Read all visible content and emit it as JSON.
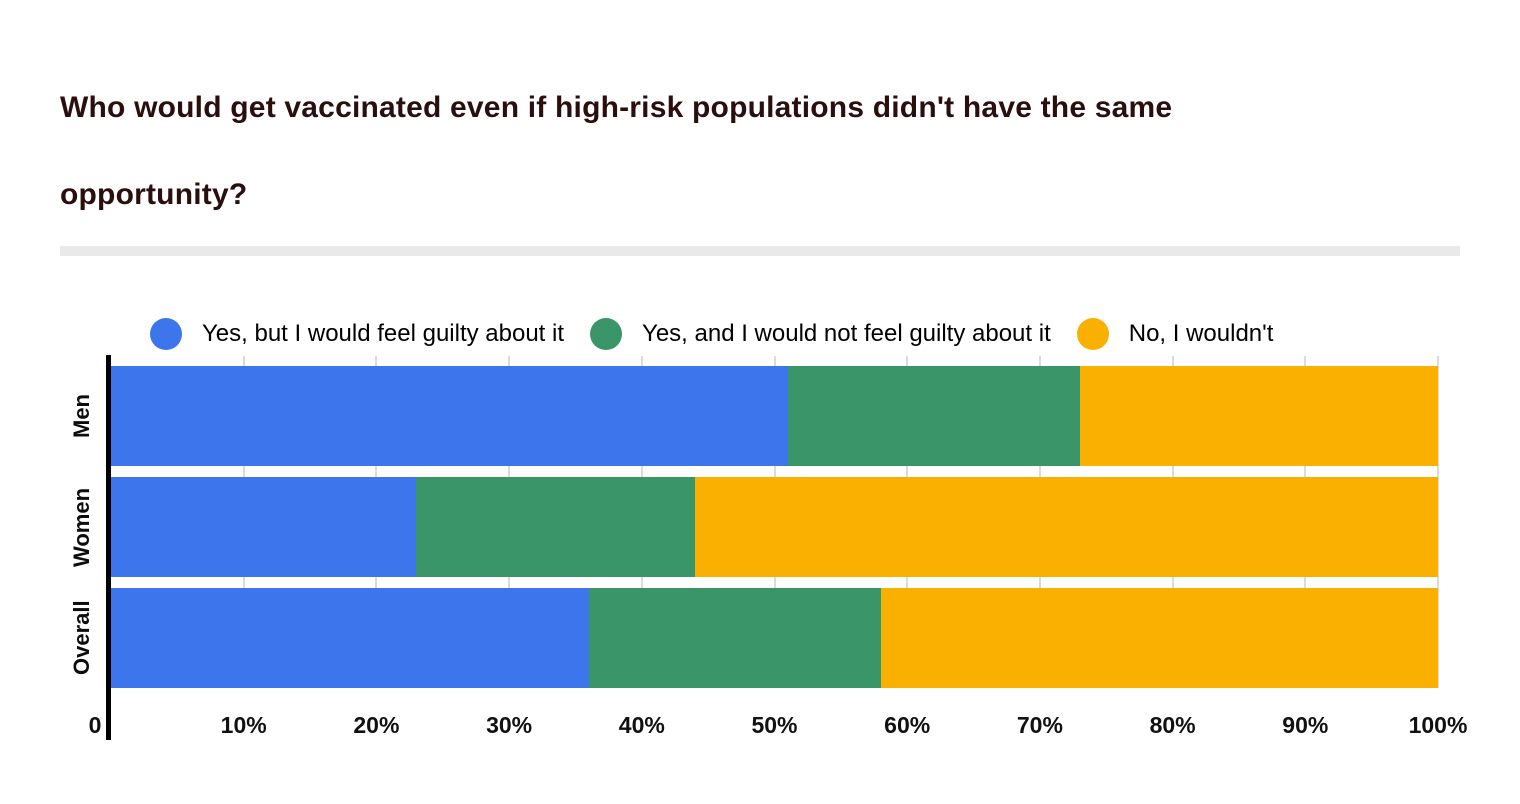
{
  "title": "Who would get vaccinated even if high-risk populations didn't have the same opportunity?",
  "colors": {
    "title_text": "#2B0E0E",
    "divider": "#E9E9E9",
    "gridline": "#DBDBDB",
    "axis": "#000000"
  },
  "chart_data": {
    "type": "bar",
    "orientation": "horizontal",
    "stacked": true,
    "title": "Who would get vaccinated even if high-risk populations didn't have the same opportunity?",
    "categories": [
      "Men",
      "Women",
      "Overall"
    ],
    "series": [
      {
        "name": "Yes, but I would feel guilty about it",
        "color": "#3D76EC",
        "values": [
          51,
          23,
          36
        ]
      },
      {
        "name": "Yes, and I would not feel guilty about it",
        "color": "#3A9668",
        "values": [
          22,
          21,
          22
        ]
      },
      {
        "name": "No, I wouldn't",
        "color": "#F9B000",
        "values": [
          27,
          56,
          42
        ]
      }
    ],
    "value_unit": "%",
    "x_ticks": [
      "0",
      "10%",
      "20%",
      "30%",
      "40%",
      "50%",
      "60%",
      "70%",
      "80%",
      "90%",
      "100%"
    ],
    "xlim": [
      0,
      100
    ],
    "legend_position": "top",
    "grid": true
  }
}
